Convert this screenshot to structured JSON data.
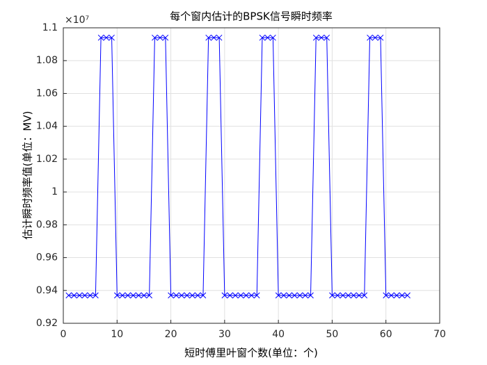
{
  "chart_data": {
    "type": "line",
    "title": "每个窗内估计的BPSK信号瞬时频率",
    "x_label": "短时傅里叶窗个数(单位：个)",
    "y_label": "估计瞬时频率值(单位：MV)",
    "y_multiplier": "×10⁷",
    "x": [
      1,
      2,
      3,
      4,
      5,
      6,
      7,
      8,
      9,
      10,
      11,
      12,
      13,
      14,
      15,
      16,
      17,
      18,
      19,
      20,
      21,
      22,
      23,
      24,
      25,
      26,
      27,
      28,
      29,
      30,
      31,
      32,
      33,
      34,
      35,
      36,
      37,
      38,
      39,
      40,
      41,
      42,
      43,
      44,
      45,
      46,
      47,
      48,
      49,
      50,
      51,
      52,
      53,
      54,
      55,
      56,
      57,
      58,
      59,
      60,
      61,
      62,
      63,
      64
    ],
    "values": [
      0.937,
      0.937,
      0.937,
      0.937,
      0.937,
      0.937,
      1.094,
      1.094,
      1.094,
      0.937,
      0.937,
      0.937,
      0.937,
      0.937,
      0.937,
      0.937,
      1.094,
      1.094,
      1.094,
      0.937,
      0.937,
      0.937,
      0.937,
      0.937,
      0.937,
      0.937,
      1.094,
      1.094,
      1.094,
      0.937,
      0.937,
      0.937,
      0.937,
      0.937,
      0.937,
      0.937,
      1.094,
      1.094,
      1.094,
      0.937,
      0.937,
      0.937,
      0.937,
      0.937,
      0.937,
      0.937,
      1.094,
      1.094,
      1.094,
      0.937,
      0.937,
      0.937,
      0.937,
      0.937,
      0.937,
      0.937,
      1.094,
      1.094,
      1.094,
      0.937,
      0.937,
      0.937,
      0.937,
      0.937
    ],
    "color": "#0000ff",
    "marker": "x",
    "xlim": [
      0,
      70
    ],
    "xticks": [
      0,
      10,
      20,
      30,
      40,
      50,
      60,
      70
    ],
    "ylim": [
      0.92,
      1.1
    ],
    "yticks": [
      0.92,
      0.94,
      0.96,
      0.98,
      1,
      1.02,
      1.04,
      1.06,
      1.08,
      1.1
    ],
    "grid": true
  }
}
